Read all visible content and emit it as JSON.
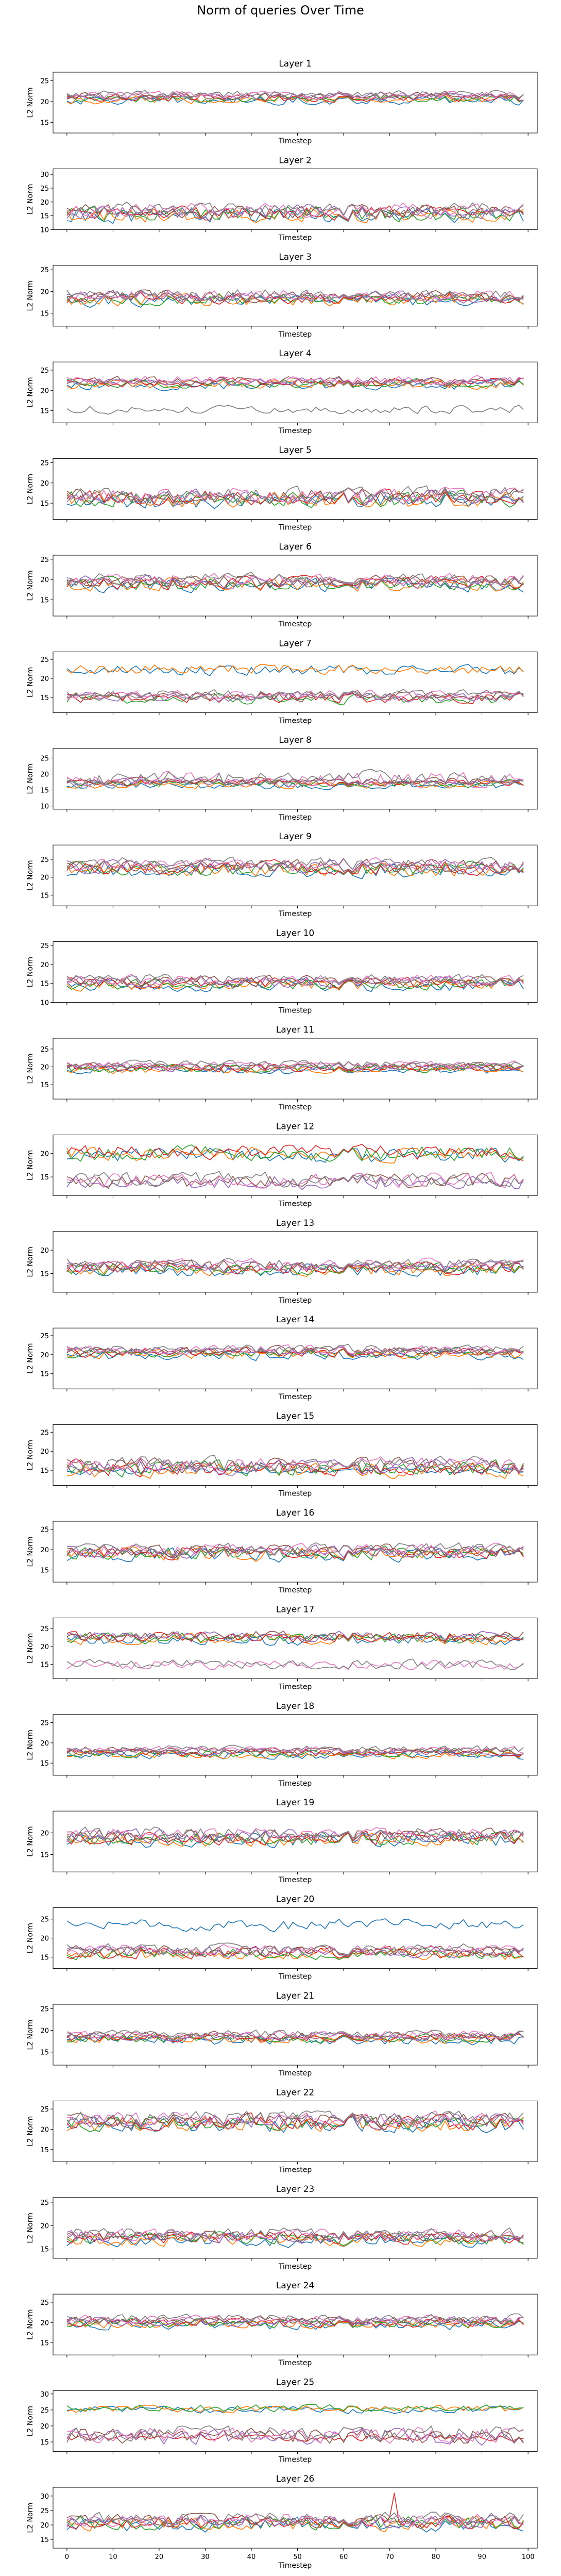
{
  "figure": {
    "suptitle": "Norm of queries Over Time",
    "xlabel_final": "Timestep"
  },
  "colors": [
    "#1f77b4",
    "#ff7f0e",
    "#2ca02c",
    "#d62728",
    "#9467bd",
    "#8c564b",
    "#e377c2",
    "#7f7f7f"
  ],
  "chart_data": [
    {
      "type": "line",
      "title": "Layer 1",
      "xlabel": "Timestep",
      "ylabel": "L2 Norm",
      "xlim": [
        -3,
        102
      ],
      "ylim": [
        12.5,
        27
      ],
      "yticks": [
        15,
        20,
        25
      ],
      "xticks": [],
      "series_count": 8,
      "grid": false
    },
    {
      "type": "line",
      "title": "Layer 2",
      "xlabel": "Timestep",
      "ylabel": "L2 Norm",
      "xlim": [
        -3,
        102
      ],
      "ylim": [
        10,
        32
      ],
      "yticks": [
        10,
        15,
        20,
        25,
        30
      ],
      "xticks": [],
      "series_count": 8,
      "grid": false
    },
    {
      "type": "line",
      "title": "Layer 3",
      "xlabel": "Timestep",
      "ylabel": "L2 Norm",
      "xlim": [
        -3,
        102
      ],
      "ylim": [
        12,
        26
      ],
      "yticks": [
        15,
        20,
        25
      ],
      "xticks": [],
      "series_count": 8,
      "grid": false
    },
    {
      "type": "line",
      "title": "Layer 4",
      "xlabel": "Timestep",
      "ylabel": "L2 Norm",
      "xlim": [
        -3,
        102
      ],
      "ylim": [
        12,
        27
      ],
      "yticks": [
        15,
        20,
        25
      ],
      "xticks": [],
      "series_count": 8,
      "grid": false
    },
    {
      "type": "line",
      "title": "Layer 5",
      "xlabel": "Timestep",
      "ylabel": "L2 Norm",
      "xlim": [
        -3,
        102
      ],
      "ylim": [
        11,
        26
      ],
      "yticks": [
        15,
        20,
        25
      ],
      "xticks": [],
      "series_count": 8,
      "grid": false
    },
    {
      "type": "line",
      "title": "Layer 6",
      "xlabel": "Timestep",
      "ylabel": "L2 Norm",
      "xlim": [
        -3,
        102
      ],
      "ylim": [
        11,
        26
      ],
      "yticks": [
        15,
        20,
        25
      ],
      "xticks": [],
      "series_count": 8,
      "grid": false
    },
    {
      "type": "line",
      "title": "Layer 7",
      "xlabel": "Timestep",
      "ylabel": "L2 Norm",
      "xlim": [
        -3,
        102
      ],
      "ylim": [
        11,
        27
      ],
      "yticks": [
        15,
        20,
        25
      ],
      "xticks": [],
      "series_count": 8,
      "grid": false
    },
    {
      "type": "line",
      "title": "Layer 8",
      "xlabel": "Timestep",
      "ylabel": "L2 Norm",
      "xlim": [
        -3,
        102
      ],
      "ylim": [
        9,
        28
      ],
      "yticks": [
        10,
        15,
        20,
        25
      ],
      "xticks": [],
      "series_count": 8,
      "grid": false
    },
    {
      "type": "line",
      "title": "Layer 9",
      "xlabel": "Timestep",
      "ylabel": "L2 Norm",
      "xlim": [
        -3,
        102
      ],
      "ylim": [
        12,
        29
      ],
      "yticks": [
        15,
        20,
        25
      ],
      "xticks": [],
      "series_count": 8,
      "grid": false
    },
    {
      "type": "line",
      "title": "Layer 10",
      "xlabel": "Timestep",
      "ylabel": "L2 Norm",
      "xlim": [
        -3,
        102
      ],
      "ylim": [
        10,
        26
      ],
      "yticks": [
        10,
        15,
        20,
        25
      ],
      "xticks": [],
      "series_count": 8,
      "grid": false
    },
    {
      "type": "line",
      "title": "Layer 11",
      "xlabel": "Timestep",
      "ylabel": "L2 Norm",
      "xlim": [
        -3,
        102
      ],
      "ylim": [
        11,
        28
      ],
      "yticks": [
        15,
        20,
        25
      ],
      "xticks": [],
      "series_count": 8,
      "grid": false
    },
    {
      "type": "line",
      "title": "Layer 12",
      "xlabel": "Timestep",
      "ylabel": "L2 Norm",
      "xlim": [
        -3,
        102
      ],
      "ylim": [
        11,
        24
      ],
      "yticks": [
        15,
        20
      ],
      "xticks": [],
      "series_count": 8,
      "grid": false
    },
    {
      "type": "line",
      "title": "Layer 13",
      "xlabel": "Timestep",
      "ylabel": "L2 Norm",
      "xlim": [
        -3,
        102
      ],
      "ylim": [
        11,
        24
      ],
      "yticks": [
        15,
        20
      ],
      "xticks": [],
      "series_count": 8,
      "grid": false
    },
    {
      "type": "line",
      "title": "Layer 14",
      "xlabel": "Timestep",
      "ylabel": "L2 Norm",
      "xlim": [
        -3,
        102
      ],
      "ylim": [
        11,
        27
      ],
      "yticks": [
        15,
        20,
        25
      ],
      "xticks": [],
      "series_count": 8,
      "grid": false
    },
    {
      "type": "line",
      "title": "Layer 15",
      "xlabel": "Timestep",
      "ylabel": "L2 Norm",
      "xlim": [
        -3,
        102
      ],
      "ylim": [
        11,
        27
      ],
      "yticks": [
        15,
        20,
        25
      ],
      "xticks": [],
      "series_count": 8,
      "grid": false
    },
    {
      "type": "line",
      "title": "Layer 16",
      "xlabel": "Timestep",
      "ylabel": "L2 Norm",
      "xlim": [
        -3,
        102
      ],
      "ylim": [
        12,
        27
      ],
      "yticks": [
        15,
        20,
        25
      ],
      "xticks": [],
      "series_count": 8,
      "grid": false
    },
    {
      "type": "line",
      "title": "Layer 17",
      "xlabel": "Timestep",
      "ylabel": "L2 Norm",
      "xlim": [
        -3,
        102
      ],
      "ylim": [
        11,
        28
      ],
      "yticks": [
        15,
        20,
        25
      ],
      "xticks": [],
      "series_count": 8,
      "grid": false
    },
    {
      "type": "line",
      "title": "Layer 18",
      "xlabel": "Timestep",
      "ylabel": "L2 Norm",
      "xlim": [
        -3,
        102
      ],
      "ylim": [
        12,
        27
      ],
      "yticks": [
        15,
        20,
        25
      ],
      "xticks": [],
      "series_count": 8,
      "grid": false
    },
    {
      "type": "line",
      "title": "Layer 19",
      "xlabel": "Timestep",
      "ylabel": "L2 Norm",
      "xlim": [
        -3,
        102
      ],
      "ylim": [
        11,
        25
      ],
      "yticks": [
        15,
        20
      ],
      "xticks": [],
      "series_count": 8,
      "grid": false
    },
    {
      "type": "line",
      "title": "Layer 20",
      "xlabel": "Timestep",
      "ylabel": "L2 Norm",
      "xlim": [
        -3,
        102
      ],
      "ylim": [
        12,
        28
      ],
      "yticks": [
        15,
        20,
        25
      ],
      "xticks": [],
      "series_count": 8,
      "grid": false
    },
    {
      "type": "line",
      "title": "Layer 21",
      "xlabel": "Timestep",
      "ylabel": "L2 Norm",
      "xlim": [
        -3,
        102
      ],
      "ylim": [
        12,
        26
      ],
      "yticks": [
        15,
        20,
        25
      ],
      "xticks": [],
      "series_count": 8,
      "grid": false
    },
    {
      "type": "line",
      "title": "Layer 22",
      "xlabel": "Timestep",
      "ylabel": "L2 Norm",
      "xlim": [
        -3,
        102
      ],
      "ylim": [
        12,
        27
      ],
      "yticks": [
        15,
        20,
        25
      ],
      "xticks": [],
      "series_count": 8,
      "grid": false
    },
    {
      "type": "line",
      "title": "Layer 23",
      "xlabel": "Timestep",
      "ylabel": "L2 Norm",
      "xlim": [
        -3,
        102
      ],
      "ylim": [
        13,
        26
      ],
      "yticks": [
        15,
        20,
        25
      ],
      "xticks": [],
      "series_count": 8,
      "grid": false
    },
    {
      "type": "line",
      "title": "Layer 24",
      "xlabel": "Timestep",
      "ylabel": "L2 Norm",
      "xlim": [
        -3,
        102
      ],
      "ylim": [
        12,
        27
      ],
      "yticks": [
        15,
        20,
        25
      ],
      "xticks": [],
      "series_count": 8,
      "grid": false
    },
    {
      "type": "line",
      "title": "Layer 25",
      "xlabel": "Timestep",
      "ylabel": "L2 Norm",
      "xlim": [
        -3,
        102
      ],
      "ylim": [
        12,
        31
      ],
      "yticks": [
        15,
        20,
        25,
        30
      ],
      "xticks": [],
      "series_count": 8,
      "grid": false
    },
    {
      "type": "line",
      "title": "Layer 26",
      "xlabel": "Timestep",
      "ylabel": "L2 Norm",
      "xlim": [
        -3,
        102
      ],
      "ylim": [
        12,
        33
      ],
      "yticks": [
        15,
        20,
        25,
        30
      ],
      "xticks": [
        0,
        10,
        20,
        30,
        40,
        50,
        60,
        70,
        80,
        90,
        100
      ],
      "series_count": 8,
      "grid": false,
      "annotation": "red series spikes to about 31 near timestep 71"
    }
  ]
}
